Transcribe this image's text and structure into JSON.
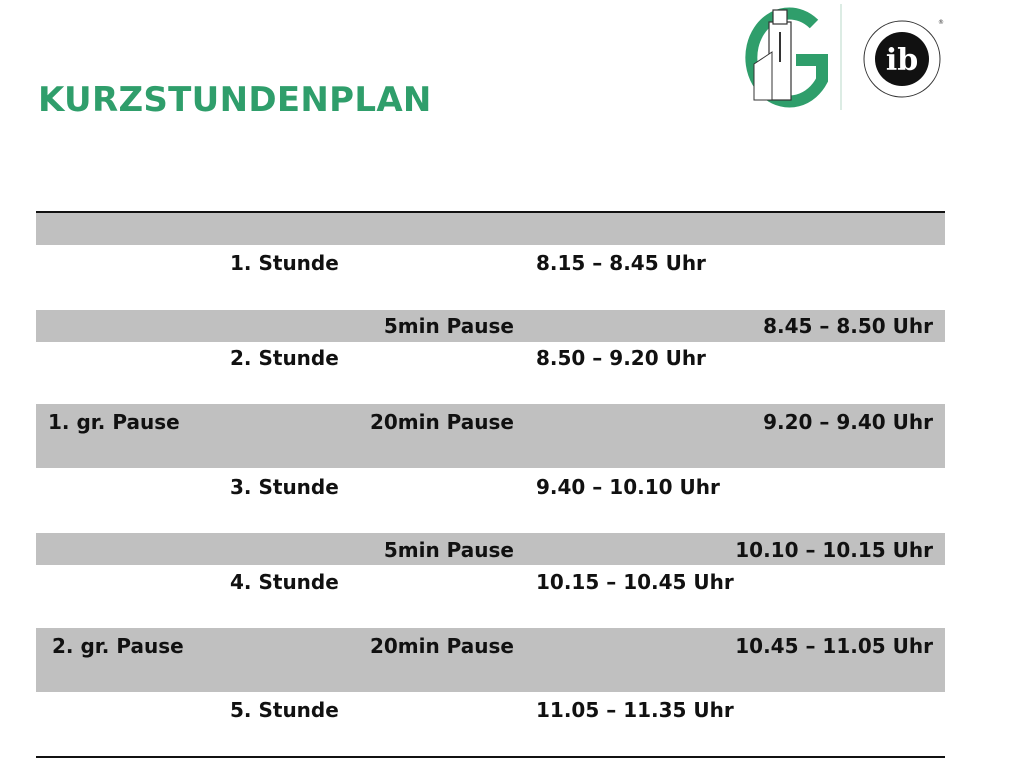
{
  "title": "KURZSTUNDENPLAN",
  "logos": {
    "school_letter": "G",
    "ib_text": "ib",
    "ib_ring": "COLEGIO DEL MUNDO · WORLD SCHOOL · ÉCOLE DU MONDE"
  },
  "colors": {
    "accent": "#2f9e6b",
    "row_shade": "#c0c0c0"
  },
  "rows": [
    {
      "label": "",
      "name": "",
      "time": "",
      "shaded": true
    },
    {
      "label": "",
      "name": "1. Stunde",
      "time": "8.15 – 8.45 Uhr",
      "shaded": false
    },
    {
      "label": "",
      "name": "5min Pause",
      "time": "8.45 – 8.50 Uhr",
      "shaded": true
    },
    {
      "label": "",
      "name": "2. Stunde",
      "time": "8.50 – 9.20 Uhr",
      "shaded": false
    },
    {
      "label": "1. gr. Pause",
      "name": "20min Pause",
      "time": "9.20 – 9.40 Uhr",
      "shaded": true
    },
    {
      "label": "",
      "name": "3. Stunde",
      "time": "9.40 – 10.10 Uhr",
      "shaded": false
    },
    {
      "label": "",
      "name": "5min Pause",
      "time": "10.10 – 10.15 Uhr",
      "shaded": true
    },
    {
      "label": "",
      "name": "4. Stunde",
      "time": "10.15 – 10.45 Uhr",
      "shaded": false
    },
    {
      "label": "2. gr. Pause",
      "name": "20min Pause",
      "time": "10.45 – 11.05 Uhr",
      "shaded": true
    },
    {
      "label": "",
      "name": "5. Stunde",
      "time": "11.05 – 11.35 Uhr",
      "shaded": false
    }
  ]
}
